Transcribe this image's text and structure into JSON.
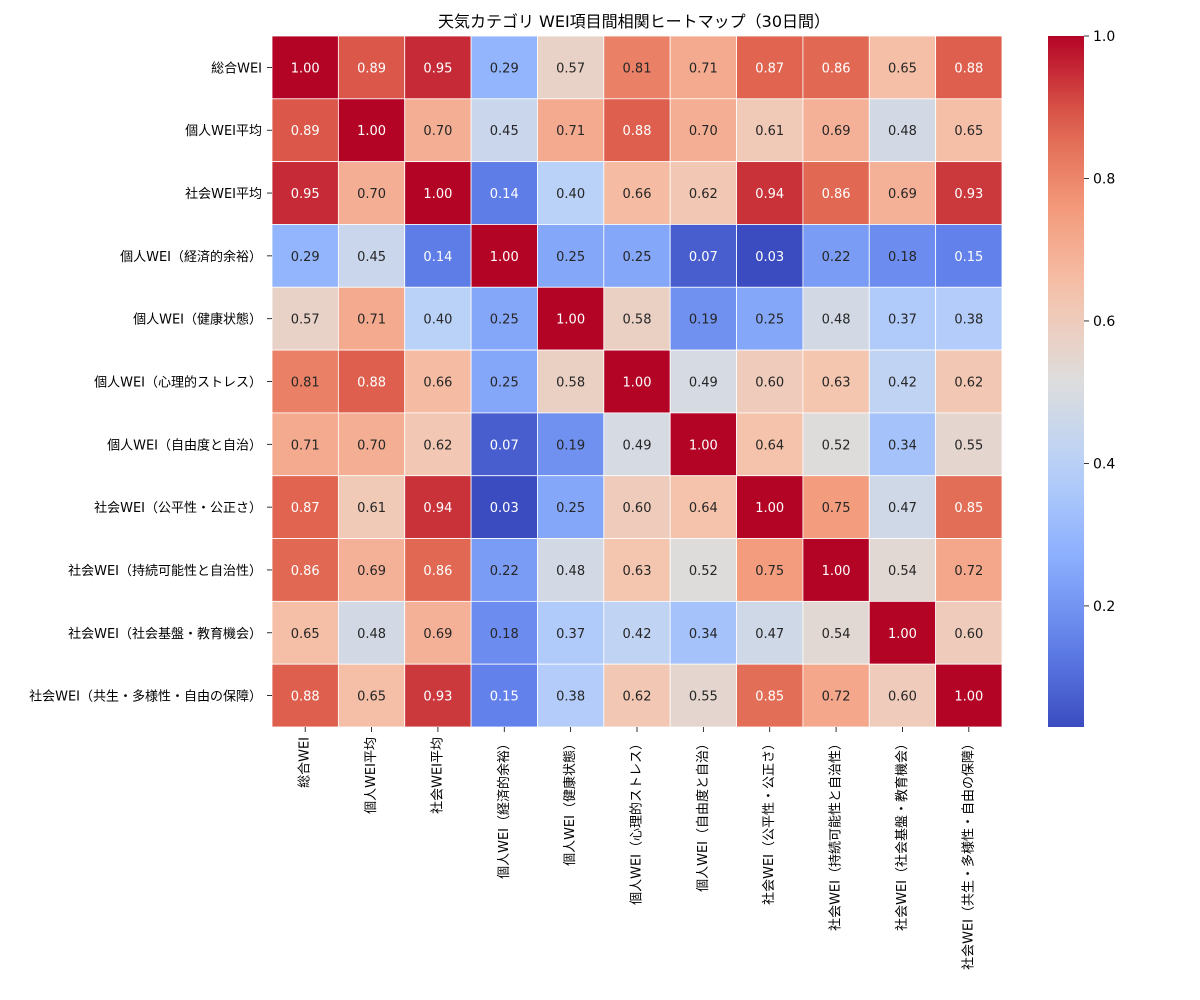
{
  "chart_data": {
    "type": "heatmap",
    "title": "天気カテゴリ WEI項目間相関ヒートマップ（30日間）",
    "colormap": "coolwarm",
    "grid_lines_color": "#ffffff",
    "annotated": true,
    "labels": [
      "総合WEI",
      "個人WEI平均",
      "社会WEI平均",
      "個人WEI（経済的余裕）",
      "個人WEI（健康状態）",
      "個人WEI（心理的ストレス）",
      "個人WEI（自由度と自治）",
      "社会WEI（公平性・公正さ）",
      "社会WEI（持続可能性と自治性）",
      "社会WEI（社会基盤・教育機会）",
      "社会WEI（共生・多様性・自由の保障）"
    ],
    "values": [
      [
        1.0,
        0.89,
        0.95,
        0.29,
        0.57,
        0.81,
        0.71,
        0.87,
        0.86,
        0.65,
        0.88
      ],
      [
        0.89,
        1.0,
        0.7,
        0.45,
        0.71,
        0.88,
        0.7,
        0.61,
        0.69,
        0.48,
        0.65
      ],
      [
        0.95,
        0.7,
        1.0,
        0.14,
        0.4,
        0.66,
        0.62,
        0.94,
        0.86,
        0.69,
        0.93
      ],
      [
        0.29,
        0.45,
        0.14,
        1.0,
        0.25,
        0.25,
        0.07,
        0.03,
        0.22,
        0.18,
        0.15
      ],
      [
        0.57,
        0.71,
        0.4,
        0.25,
        1.0,
        0.58,
        0.19,
        0.25,
        0.48,
        0.37,
        0.38
      ],
      [
        0.81,
        0.88,
        0.66,
        0.25,
        0.58,
        1.0,
        0.49,
        0.6,
        0.63,
        0.42,
        0.62
      ],
      [
        0.71,
        0.7,
        0.62,
        0.07,
        0.19,
        0.49,
        1.0,
        0.64,
        0.52,
        0.34,
        0.55
      ],
      [
        0.87,
        0.61,
        0.94,
        0.03,
        0.25,
        0.6,
        0.64,
        1.0,
        0.75,
        0.47,
        0.85
      ],
      [
        0.86,
        0.69,
        0.86,
        0.22,
        0.48,
        0.63,
        0.52,
        0.75,
        1.0,
        0.54,
        0.72
      ],
      [
        0.65,
        0.48,
        0.69,
        0.18,
        0.37,
        0.42,
        0.34,
        0.47,
        0.54,
        1.0,
        0.6
      ],
      [
        0.88,
        0.65,
        0.93,
        0.15,
        0.38,
        0.62,
        0.55,
        0.85,
        0.72,
        0.6,
        1.0
      ]
    ],
    "vmin": 0.03,
    "vmax": 1.0,
    "colorbar": {
      "ticks": [
        0.2,
        0.4,
        0.6,
        0.8,
        1.0
      ],
      "tick_labels": [
        "0.2",
        "0.4",
        "0.6",
        "0.8",
        "1.0"
      ]
    }
  }
}
